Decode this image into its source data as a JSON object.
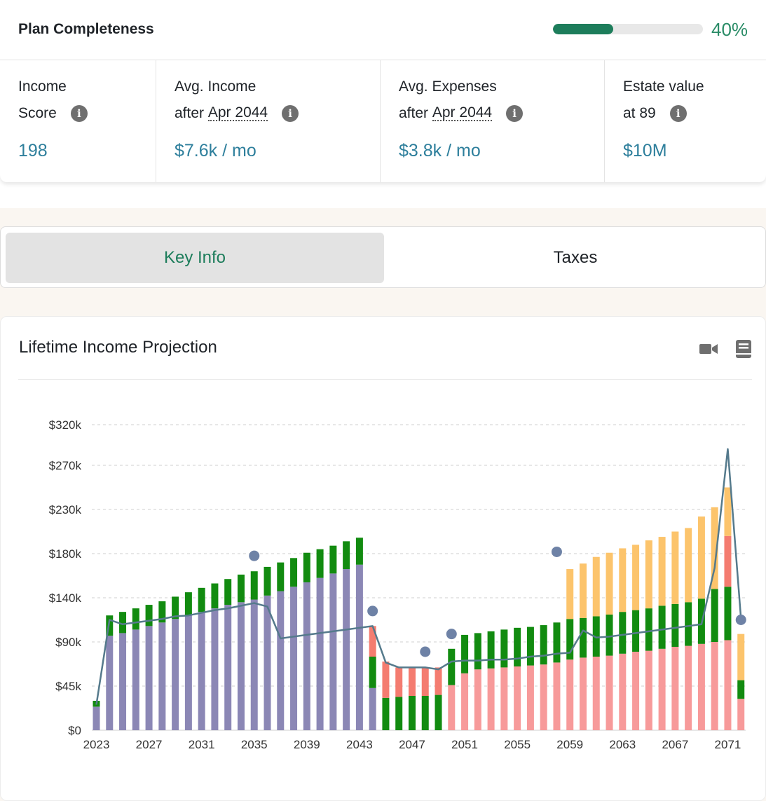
{
  "completeness": {
    "title": "Plan Completeness",
    "percent_label": "40%",
    "progress_fraction": 0.4,
    "color": "#1d7d5b"
  },
  "stats": [
    {
      "line1": "Income",
      "line2": "Score",
      "line2_dotted": "",
      "value": "198"
    },
    {
      "line1": "Avg. Income",
      "line2": "after",
      "line2_dotted": "Apr 2044",
      "value": "$7.6k / mo"
    },
    {
      "line1": "Avg. Expenses",
      "line2": "after",
      "line2_dotted": "Apr 2044",
      "value": "$3.8k / mo"
    },
    {
      "line1": "Estate value",
      "line2": "at 89",
      "line2_dotted": "",
      "value": "$10M"
    }
  ],
  "info_icon": "info-icon",
  "tabs": [
    {
      "label": "Key Info",
      "active": true
    },
    {
      "label": "Taxes",
      "active": false
    }
  ],
  "chart_card": {
    "title": "Lifetime Income Projection",
    "icons": [
      "video-camera-icon",
      "book-icon"
    ]
  },
  "chart_data": {
    "type": "bar",
    "stacked": true,
    "y_ticks": [
      "$0",
      "$45k",
      "$90k",
      "$140k",
      "$180k",
      "$230k",
      "$270k",
      "$320k"
    ],
    "y_tick_values": [
      0,
      45000,
      90000,
      140000,
      180000,
      230000,
      270000,
      320000
    ],
    "x_tick_labels": [
      "2023",
      "2027",
      "2031",
      "2035",
      "2039",
      "2043",
      "2047",
      "2051",
      "2055",
      "2059",
      "2063",
      "2067",
      "2071"
    ],
    "grid": "horizontal dashed",
    "colors": {
      "purple": "#8b87b5",
      "green": "#128b10",
      "red": "#f47c70",
      "pink": "#f79a9a",
      "orange": "#fcc46c",
      "line": "#557a8c",
      "dot": "#6e82a6"
    },
    "categories": [
      2023,
      2024,
      2025,
      2026,
      2027,
      2028,
      2029,
      2030,
      2031,
      2032,
      2033,
      2034,
      2035,
      2036,
      2037,
      2038,
      2039,
      2040,
      2041,
      2042,
      2043,
      2044,
      2045,
      2046,
      2047,
      2048,
      2049,
      2050,
      2051,
      2052,
      2053,
      2054,
      2055,
      2056,
      2057,
      2058,
      2059,
      2060,
      2061,
      2062,
      2063,
      2064,
      2065,
      2066,
      2067,
      2068,
      2069,
      2070,
      2071,
      2072
    ],
    "segments": [
      [
        [
          "purple",
          24000
        ],
        [
          "green",
          6000
        ]
      ],
      [
        [
          "purple",
          97000
        ],
        [
          "green",
          23000
        ]
      ],
      [
        [
          "purple",
          100000
        ],
        [
          "green",
          24000
        ]
      ],
      [
        [
          "purple",
          104000
        ],
        [
          "green",
          24000
        ]
      ],
      [
        [
          "purple",
          108000
        ],
        [
          "green",
          24000
        ]
      ],
      [
        [
          "purple",
          112000
        ],
        [
          "green",
          24000
        ]
      ],
      [
        [
          "purple",
          116000
        ],
        [
          "green",
          25000
        ]
      ],
      [
        [
          "purple",
          120000
        ],
        [
          "green",
          25000
        ]
      ],
      [
        [
          "purple",
          124000
        ],
        [
          "green",
          25000
        ]
      ],
      [
        [
          "purple",
          128000
        ],
        [
          "green",
          25000
        ]
      ],
      [
        [
          "purple",
          132000
        ],
        [
          "green",
          25000
        ]
      ],
      [
        [
          "purple",
          135000
        ],
        [
          "green",
          26000
        ]
      ],
      [
        [
          "purple",
          138000
        ],
        [
          "green",
          26000
        ]
      ],
      [
        [
          "purple",
          142000
        ],
        [
          "green",
          26000
        ]
      ],
      [
        [
          "purple",
          146000
        ],
        [
          "green",
          26000
        ]
      ],
      [
        [
          "purple",
          150000
        ],
        [
          "green",
          26000
        ]
      ],
      [
        [
          "purple",
          154000
        ],
        [
          "green",
          27000
        ]
      ],
      [
        [
          "purple",
          158000
        ],
        [
          "green",
          27000
        ]
      ],
      [
        [
          "purple",
          162000
        ],
        [
          "green",
          27000
        ]
      ],
      [
        [
          "purple",
          166000
        ],
        [
          "green",
          28000
        ]
      ],
      [
        [
          "purple",
          170000
        ],
        [
          "green",
          28000
        ]
      ],
      [
        [
          "purple",
          43000
        ],
        [
          "green",
          32000
        ],
        [
          "red",
          33000
        ]
      ],
      [
        [
          "green",
          33000
        ],
        [
          "red",
          37000
        ]
      ],
      [
        [
          "green",
          34000
        ],
        [
          "red",
          30000
        ]
      ],
      [
        [
          "green",
          35000
        ],
        [
          "red",
          29000
        ]
      ],
      [
        [
          "green",
          35000
        ],
        [
          "red",
          29000
        ]
      ],
      [
        [
          "green",
          36000
        ],
        [
          "red",
          28000
        ]
      ],
      [
        [
          "pink",
          46000
        ],
        [
          "green",
          37000
        ]
      ],
      [
        [
          "pink",
          58000
        ],
        [
          "green",
          40000
        ]
      ],
      [
        [
          "pink",
          62000
        ],
        [
          "green",
          38000
        ]
      ],
      [
        [
          "pink",
          63000
        ],
        [
          "green",
          39000
        ]
      ],
      [
        [
          "pink",
          64000
        ],
        [
          "green",
          40000
        ]
      ],
      [
        [
          "pink",
          65000
        ],
        [
          "green",
          41000
        ]
      ],
      [
        [
          "pink",
          66000
        ],
        [
          "green",
          41000
        ]
      ],
      [
        [
          "pink",
          67000
        ],
        [
          "green",
          42000
        ]
      ],
      [
        [
          "pink",
          69000
        ],
        [
          "green",
          43000
        ]
      ],
      [
        [
          "pink",
          72000
        ],
        [
          "green",
          44000
        ],
        [
          "orange",
          50000
        ]
      ],
      [
        [
          "pink",
          74000
        ],
        [
          "green",
          43000
        ],
        [
          "orange",
          54000
        ]
      ],
      [
        [
          "pink",
          75000
        ],
        [
          "green",
          44000
        ],
        [
          "orange",
          58000
        ]
      ],
      [
        [
          "pink",
          76000
        ],
        [
          "green",
          45000
        ],
        [
          "orange",
          60000
        ]
      ],
      [
        [
          "pink",
          78000
        ],
        [
          "green",
          46000
        ],
        [
          "orange",
          62000
        ]
      ],
      [
        [
          "pink",
          80000
        ],
        [
          "green",
          46000
        ],
        [
          "orange",
          64000
        ]
      ],
      [
        [
          "pink",
          81000
        ],
        [
          "green",
          47000
        ],
        [
          "orange",
          67000
        ]
      ],
      [
        [
          "pink",
          83000
        ],
        [
          "green",
          48000
        ],
        [
          "orange",
          68000
        ]
      ],
      [
        [
          "pink",
          85000
        ],
        [
          "green",
          48000
        ],
        [
          "orange",
          72000
        ]
      ],
      [
        [
          "pink",
          86000
        ],
        [
          "green",
          49000
        ],
        [
          "orange",
          74000
        ]
      ],
      [
        [
          "pink",
          88000
        ],
        [
          "green",
          51000
        ],
        [
          "orange",
          83000
        ]
      ],
      [
        [
          "pink",
          90000
        ],
        [
          "green",
          58000
        ],
        [
          "orange",
          84000
        ]
      ],
      [
        [
          "pink",
          92000
        ],
        [
          "green",
          58000
        ],
        [
          "red",
          50000
        ],
        [
          "orange",
          50000
        ]
      ],
      [
        [
          "pink",
          32000
        ],
        [
          "green",
          19000
        ],
        [
          "orange",
          48000
        ]
      ]
    ],
    "line_values": [
      26000,
      115000,
      110000,
      112000,
      114000,
      116000,
      119000,
      120000,
      123000,
      126000,
      128000,
      131000,
      134000,
      130000,
      94000,
      96000,
      98000,
      100000,
      102000,
      104000,
      106000,
      108000,
      69000,
      64000,
      64000,
      64000,
      62000,
      70000,
      71000,
      71000,
      72000,
      72000,
      73000,
      75000,
      76000,
      78000,
      79000,
      103000,
      95000,
      96000,
      98000,
      100000,
      102000,
      104000,
      106000,
      108000,
      110000,
      167000,
      290000,
      117000
    ],
    "dots": [
      {
        "year": 2035,
        "value": 178000
      },
      {
        "year": 2044,
        "value": 125000
      },
      {
        "year": 2048,
        "value": 80000
      },
      {
        "year": 2050,
        "value": 99000
      },
      {
        "year": 2058,
        "value": 182000
      },
      {
        "year": 2072,
        "value": 115000
      }
    ]
  }
}
